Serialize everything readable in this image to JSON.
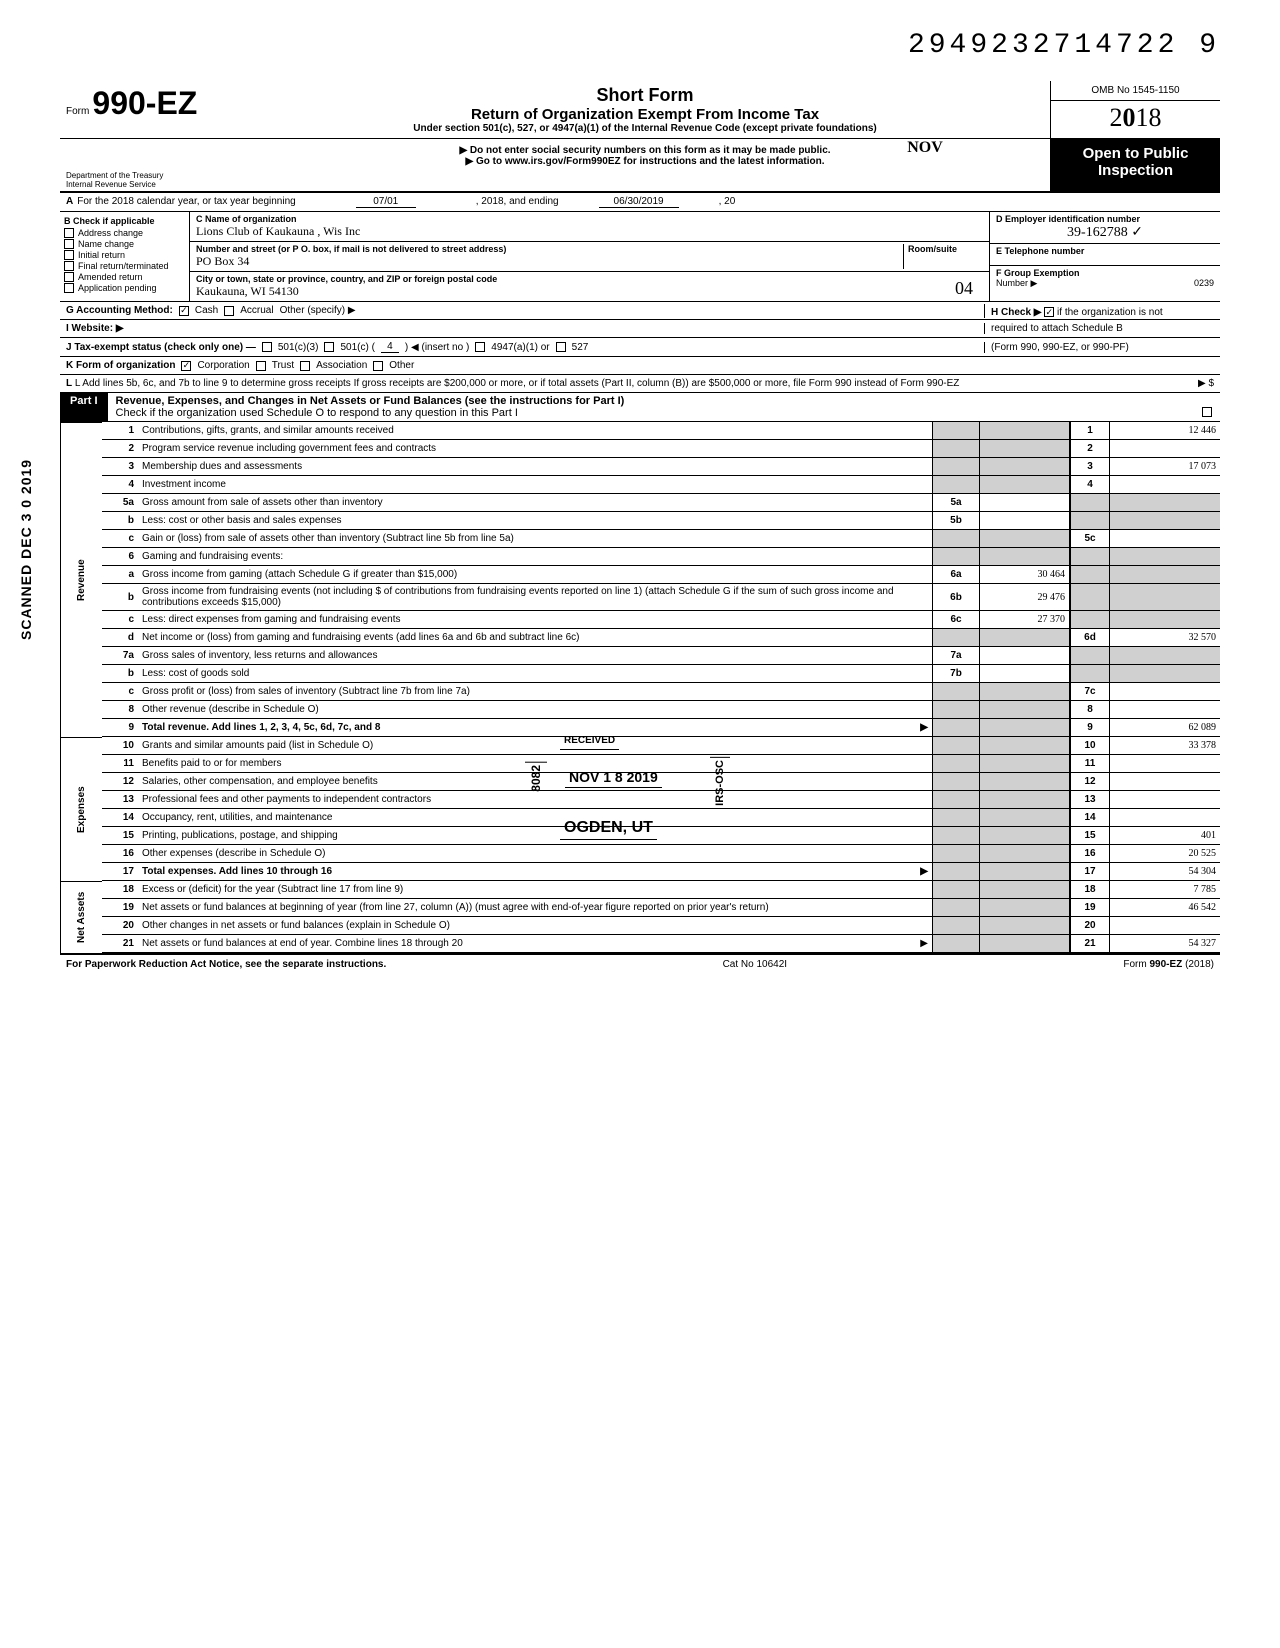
{
  "stamp_top": "2949232714722 9",
  "page_side_stamp": "SCANNED DEC 3 0 2019",
  "form": {
    "prefix": "Form",
    "number": "990-EZ",
    "title_main": "Short Form",
    "title_sub": "Return of Organization Exempt From Income Tax",
    "title_small": "Under section 501(c), 527, or 4947(a)(1) of the Internal Revenue Code (except private foundations)",
    "instruct1": "▶ Do not enter social security numbers on this form as it may be made public.",
    "instruct2": "▶ Go to www.irs.gov/Form990EZ for instructions and the latest information.",
    "dept1": "Department of the Treasury",
    "dept2": "Internal Revenue Service",
    "omb": "OMB No 1545-1150",
    "year": "2018",
    "open": "Open to Public Inspection",
    "hand_note": "NOV"
  },
  "line_a": {
    "prefix": "A",
    "text": "For the 2018 calendar year, or tax year beginning",
    "begin": "07/01",
    "mid": ", 2018, and ending",
    "end": "06/30/2019",
    "tail": ", 20"
  },
  "col_b": {
    "header": "B Check if applicable",
    "items": [
      "Address change",
      "Name change",
      "Initial return",
      "Final return/terminated",
      "Amended return",
      "Application pending"
    ]
  },
  "col_c": {
    "c_label": "C Name of organization",
    "name": "Lions Club of Kaukauna , Wis  Inc",
    "addr_label": "Number and street (or P O. box, if mail is not delivered to street address)",
    "room_label": "Room/suite",
    "addr": "PO Box 34",
    "city_label": "City or town, state or province, country, and ZIP or foreign postal code",
    "city": "Kaukauna, WI 54130",
    "city_hand": "04"
  },
  "col_right": {
    "d_label": "D Employer identification number",
    "ein": "39-162788",
    "e_label": "E Telephone number",
    "f_label": "F Group Exemption",
    "f_label2": "Number ▶",
    "group_no": "0239"
  },
  "row_g": {
    "g": "G Accounting Method:",
    "cash": "Cash",
    "accrual": "Accrual",
    "other": "Other (specify) ▶",
    "h": "H Check ▶",
    "h_tail": "if the organization is not",
    "h_tail2": "required to attach Schedule B",
    "h_tail3": "(Form 990, 990-EZ, or 990-PF)"
  },
  "row_i": "I  Website: ▶",
  "row_j": {
    "lead": "J Tax-exempt status (check only one) —",
    "o1": "501(c)(3)",
    "o2_a": "501(c) (",
    "o2_num": "4",
    "o2_b": ") ◀ (insert no )",
    "o3": "4947(a)(1) or",
    "o4": "527"
  },
  "row_k": {
    "lead": "K Form of organization",
    "o1": "Corporation",
    "o2": "Trust",
    "o3": "Association",
    "o4": "Other"
  },
  "row_l": "L Add lines 5b, 6c, and 7b to line 9 to determine gross receipts  If gross receipts are $200,000 or more, or if total assets (Part II, column (B)) are $500,000 or more, file Form 990 instead of Form 990-EZ",
  "row_l_tail": "▶   $",
  "part1": {
    "tag": "Part I",
    "title": "Revenue, Expenses, and Changes in Net Assets or Fund Balances (see the instructions for Part I)",
    "check": "Check if the organization used Schedule O to respond to any question in this Part I"
  },
  "sections": {
    "revenue": "Revenue",
    "expenses": "Expenses",
    "netassets": "Net Assets"
  },
  "lines": [
    {
      "n": "1",
      "d": "Contributions, gifts, grants, and similar amounts received",
      "r": "1",
      "v": "12 446"
    },
    {
      "n": "2",
      "d": "Program service revenue including government fees and contracts",
      "r": "2",
      "v": ""
    },
    {
      "n": "3",
      "d": "Membership dues and assessments",
      "r": "3",
      "v": "17 073"
    },
    {
      "n": "4",
      "d": "Investment income",
      "r": "4",
      "v": ""
    },
    {
      "n": "5a",
      "d": "Gross amount from sale of assets other than inventory",
      "in": "5a",
      "iv": ""
    },
    {
      "n": "b",
      "d": "Less: cost or other basis and sales expenses",
      "in": "5b",
      "iv": ""
    },
    {
      "n": "c",
      "d": "Gain or (loss) from sale of assets other than inventory (Subtract line 5b from line 5a)",
      "r": "5c",
      "v": ""
    },
    {
      "n": "6",
      "d": "Gaming and fundraising events:"
    },
    {
      "n": "a",
      "d": "Gross income from gaming (attach Schedule G if greater than $15,000)",
      "in": "6a",
      "iv": "30 464"
    },
    {
      "n": "b",
      "d": "Gross income from fundraising events (not including  $                of contributions from fundraising events reported on line 1) (attach Schedule G if the sum of such gross income and contributions exceeds $15,000)",
      "in": "6b",
      "iv": "29 476"
    },
    {
      "n": "c",
      "d": "Less: direct expenses from gaming and fundraising events",
      "in": "6c",
      "iv": "27 370"
    },
    {
      "n": "d",
      "d": "Net income or (loss) from gaming and fundraising events (add lines 6a and 6b and subtract line 6c)",
      "r": "6d",
      "v": "32 570"
    },
    {
      "n": "7a",
      "d": "Gross sales of inventory, less returns and allowances",
      "in": "7a",
      "iv": ""
    },
    {
      "n": "b",
      "d": "Less: cost of goods sold",
      "in": "7b",
      "iv": ""
    },
    {
      "n": "c",
      "d": "Gross profit or (loss) from sales of inventory (Subtract line 7b from line 7a)",
      "r": "7c",
      "v": ""
    },
    {
      "n": "8",
      "d": "Other revenue (describe in Schedule O)",
      "r": "8",
      "v": ""
    },
    {
      "n": "9",
      "d": "Total revenue. Add lines 1, 2, 3, 4, 5c, 6d, 7c, and 8",
      "r": "9",
      "v": "62 089",
      "bold": true,
      "arrow": "▶"
    },
    {
      "n": "10",
      "d": "Grants and similar amounts paid (list in Schedule O)",
      "r": "10",
      "v": "33 378"
    },
    {
      "n": "11",
      "d": "Benefits paid to or for members",
      "r": "11",
      "v": ""
    },
    {
      "n": "12",
      "d": "Salaries, other compensation, and employee benefits",
      "r": "12",
      "v": ""
    },
    {
      "n": "13",
      "d": "Professional fees and other payments to independent contractors",
      "r": "13",
      "v": ""
    },
    {
      "n": "14",
      "d": "Occupancy, rent, utilities, and maintenance",
      "r": "14",
      "v": ""
    },
    {
      "n": "15",
      "d": "Printing, publications, postage, and shipping",
      "r": "15",
      "v": "401"
    },
    {
      "n": "16",
      "d": "Other expenses (describe in Schedule O)",
      "r": "16",
      "v": "20 525"
    },
    {
      "n": "17",
      "d": "Total expenses. Add lines 10 through 16",
      "r": "17",
      "v": "54 304",
      "bold": true,
      "arrow": "▶"
    },
    {
      "n": "18",
      "d": "Excess or (deficit) for the year (Subtract line 17 from line 9)",
      "r": "18",
      "v": "7 785"
    },
    {
      "n": "19",
      "d": "Net assets or fund balances at beginning of year (from line 27, column (A)) (must agree with end-of-year figure reported on prior year's return)",
      "r": "19",
      "v": "46 542"
    },
    {
      "n": "20",
      "d": "Other changes in net assets or fund balances (explain in Schedule O)",
      "r": "20",
      "v": ""
    },
    {
      "n": "21",
      "d": "Net assets or fund balances at end of year. Combine lines 18 through 20",
      "r": "21",
      "v": "54 327",
      "arrow": "▶"
    }
  ],
  "overlay": {
    "received": "RECEIVED",
    "date": "NOV 1 8 2019",
    "ogden": "OGDEN, UT",
    "code": "8082",
    "irs": "IRS-OSC"
  },
  "footer": {
    "left": "For Paperwork Reduction Act Notice, see the separate instructions.",
    "mid": "Cat No  10642I",
    "right": "Form 990-EZ (2018)"
  }
}
